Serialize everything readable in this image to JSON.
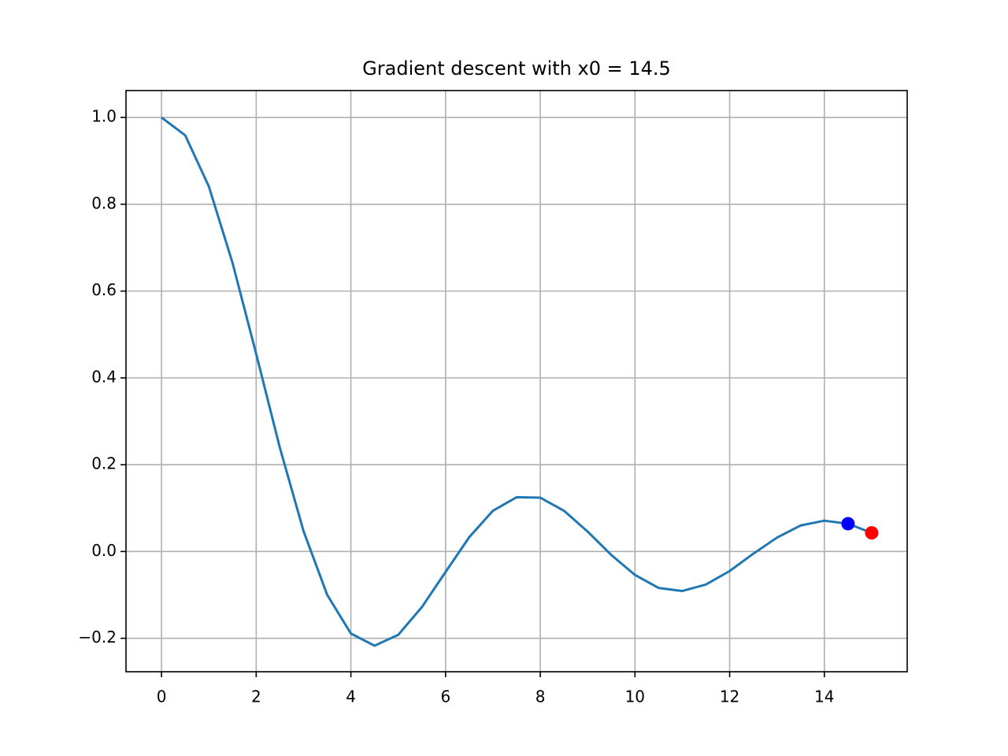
{
  "chart_data": {
    "type": "line",
    "title": "Gradient descent with x0 = 14.5",
    "series": [
      {
        "color": "#1f77b4",
        "x": [
          0,
          0.5,
          1,
          1.5,
          2,
          2.5,
          3,
          3.5,
          4,
          4.5,
          5,
          5.5,
          6,
          6.5,
          7,
          7.5,
          8,
          8.5,
          9,
          9.5,
          10,
          10.5,
          11,
          11.5,
          12,
          12.5,
          13,
          13.5,
          14,
          14.5,
          15
        ],
        "values": [
          1.0,
          0.959,
          0.841,
          0.665,
          0.455,
          0.239,
          0.047,
          -0.1,
          -0.189,
          -0.217,
          -0.192,
          -0.128,
          -0.047,
          0.033,
          0.094,
          0.125,
          0.124,
          0.094,
          0.046,
          -0.008,
          -0.054,
          -0.084,
          -0.091,
          -0.076,
          -0.045,
          -0.005,
          0.032,
          0.06,
          0.071,
          0.064,
          0.043
        ]
      }
    ],
    "points": [
      {
        "x": 14.5,
        "y": 0.064,
        "color": "#0000ff"
      },
      {
        "x": 15,
        "y": 0.043,
        "color": "#ff0000"
      }
    ],
    "xlim": [
      -0.75,
      15.75
    ],
    "ylim": [
      -0.277,
      1.062
    ],
    "xticks": [
      0,
      2,
      4,
      6,
      8,
      10,
      12,
      14
    ],
    "yticks": [
      {
        "value": -0.2,
        "label": "−0.2"
      },
      {
        "value": 0,
        "label": "0.0"
      },
      0.2,
      0.4,
      0.6,
      0.8,
      {
        "value": 1,
        "label": "1.0"
      }
    ],
    "grid": true
  }
}
